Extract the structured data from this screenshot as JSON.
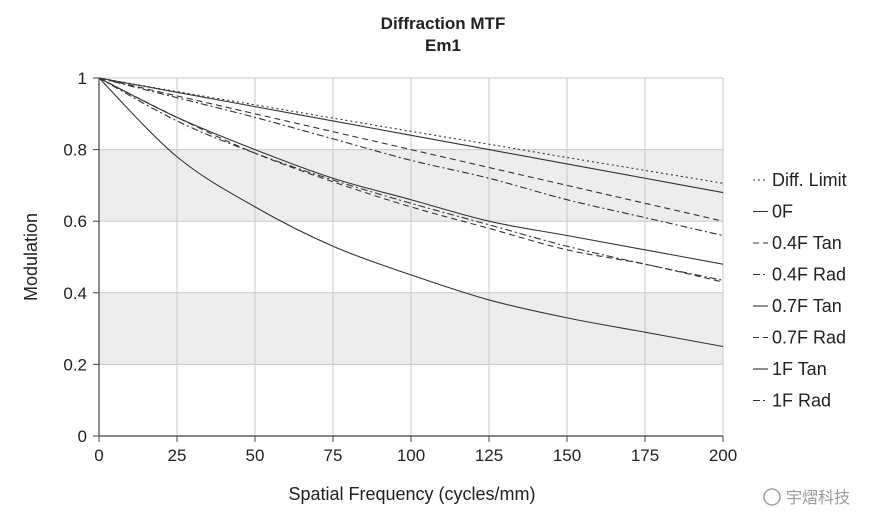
{
  "chart_data": {
    "type": "line",
    "title": "Diffraction MTF",
    "subtitle": "Em1",
    "xlabel": "Spatial Frequency (cycles/mm)",
    "ylabel": "Modulation",
    "xlim": [
      0,
      200
    ],
    "ylim": [
      0,
      1
    ],
    "x_ticks": [
      "0",
      "25",
      "50",
      "75",
      "100",
      "125",
      "150",
      "175",
      "200"
    ],
    "y_ticks": [
      "0",
      "0.2",
      "0.4",
      "0.6",
      "0.8",
      "1"
    ],
    "grid": true,
    "legend_position": "right",
    "x": [
      0,
      25,
      50,
      75,
      100,
      125,
      150,
      175,
      200
    ],
    "series": [
      {
        "name": "Diff. Limit",
        "style": "dotted",
        "values": [
          1.0,
          0.962,
          0.925,
          0.888,
          0.851,
          0.815,
          0.778,
          0.742,
          0.706
        ]
      },
      {
        "name": "0F",
        "style": "solid",
        "values": [
          1.0,
          0.96,
          0.92,
          0.88,
          0.84,
          0.8,
          0.76,
          0.72,
          0.68
        ]
      },
      {
        "name": "0.4F Tan",
        "style": "dashed",
        "values": [
          1.0,
          0.95,
          0.9,
          0.85,
          0.8,
          0.75,
          0.7,
          0.65,
          0.6
        ]
      },
      {
        "name": "0.4F Rad",
        "style": "dashdot",
        "values": [
          1.0,
          0.945,
          0.89,
          0.83,
          0.77,
          0.72,
          0.66,
          0.61,
          0.56
        ]
      },
      {
        "name": "0.7F Tan",
        "style": "solid",
        "values": [
          1.0,
          0.89,
          0.8,
          0.72,
          0.66,
          0.6,
          0.56,
          0.52,
          0.48
        ]
      },
      {
        "name": "0.7F Rad",
        "style": "dashed",
        "values": [
          1.0,
          0.89,
          0.79,
          0.71,
          0.64,
          0.58,
          0.52,
          0.48,
          0.43
        ]
      },
      {
        "name": "1F Tan",
        "style": "solid",
        "values": [
          1.0,
          0.78,
          0.64,
          0.53,
          0.45,
          0.38,
          0.33,
          0.29,
          0.25
        ]
      },
      {
        "name": "1F Rad",
        "style": "dashdot",
        "values": [
          1.0,
          0.88,
          0.79,
          0.715,
          0.65,
          0.59,
          0.53,
          0.48,
          0.435
        ]
      }
    ]
  },
  "watermark": "宇熠科技"
}
